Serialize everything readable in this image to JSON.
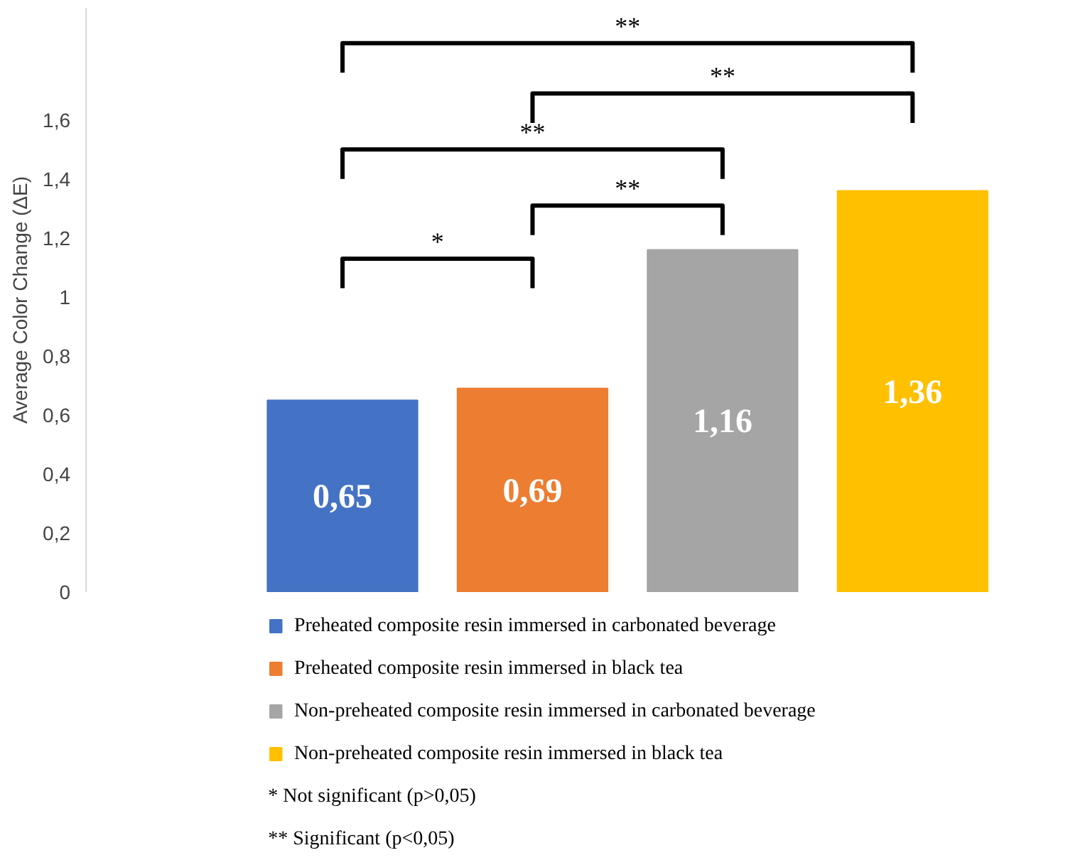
{
  "chart_data": {
    "type": "bar",
    "ylabel": "Average Color Change (ΔE)",
    "categories": [
      null,
      null,
      null,
      null
    ],
    "series": [
      {
        "name": "Preheated composite resin immersed in carbonated beverage",
        "color": "#4472c4",
        "values": [
          0.65,
          null,
          null,
          null
        ],
        "value_labels": [
          "0,65",
          null,
          null,
          null
        ]
      },
      {
        "name": "Preheated composite resin immersed in black tea",
        "color": "#ed7d31",
        "values": [
          null,
          0.69,
          null,
          null
        ],
        "value_labels": [
          null,
          "0,69",
          null,
          null
        ]
      },
      {
        "name": "Non-preheated composite resin immersed in carbonated beverage",
        "color": "#a5a5a5",
        "values": [
          null,
          null,
          1.16,
          null
        ],
        "value_labels": [
          null,
          null,
          "1,16",
          null
        ]
      },
      {
        "name": "Non-preheated composite resin immersed in black tea",
        "color": "#ffc000",
        "values": [
          null,
          null,
          null,
          1.36
        ],
        "value_labels": [
          null,
          null,
          null,
          "1,36"
        ]
      }
    ],
    "ylim": [
      0,
      1.98
    ],
    "stacked": true,
    "yticks": [
      0,
      {
        "value": 0.2,
        "label": "0,2"
      },
      {
        "value": 0.4,
        "label": "0,4"
      },
      {
        "value": 0.6,
        "label": "0,6"
      },
      {
        "value": 0.8,
        "label": "0,8"
      },
      1,
      {
        "value": 1.2,
        "label": "1,2"
      },
      {
        "value": 1.4,
        "label": "1,4"
      },
      {
        "value": 1.6,
        "label": "1,6"
      }
    ],
    "grid": false,
    "legend": "bottom",
    "annotations": [
      "*",
      "**",
      "**",
      "**",
      "**",
      "*   Not significant (p>0,05)",
      "** Significant (p<0,05)"
    ]
  }
}
